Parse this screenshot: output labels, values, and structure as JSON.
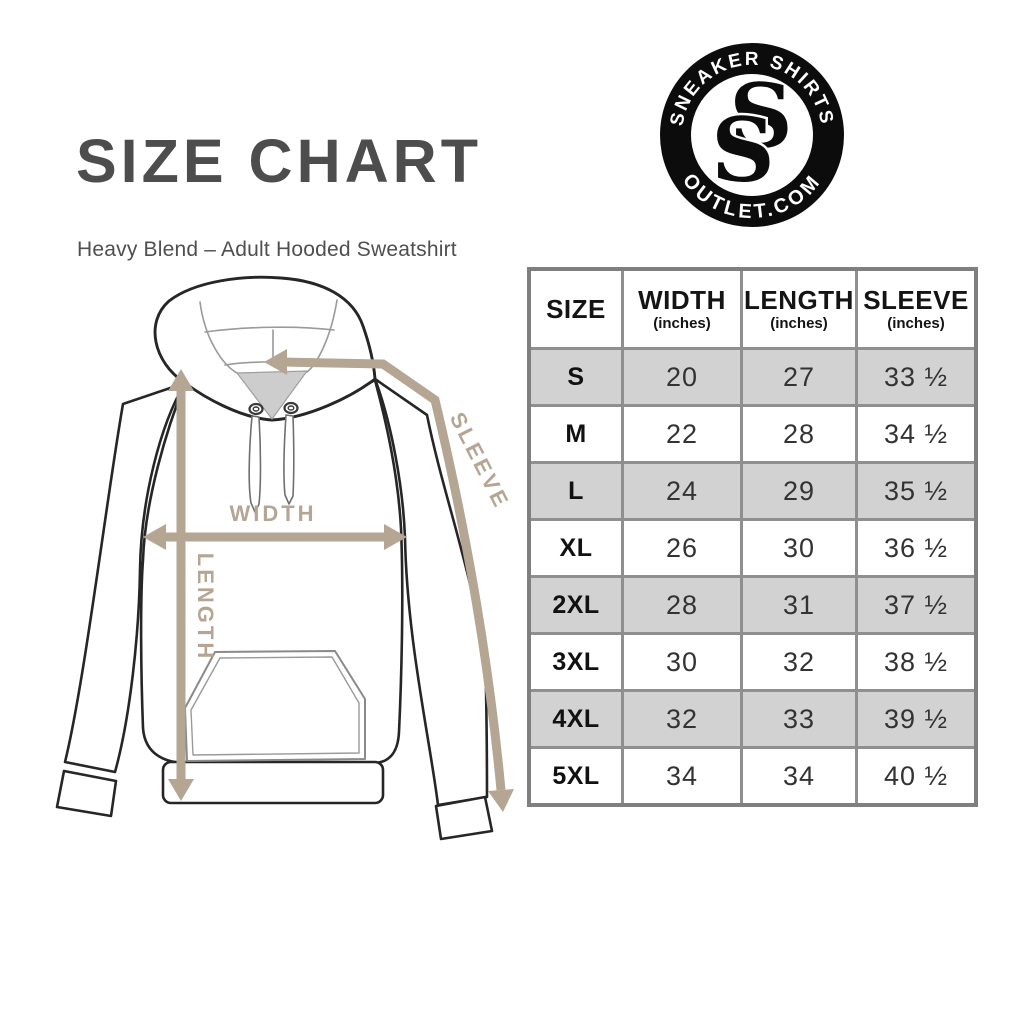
{
  "header": {
    "title": "SIZE CHART",
    "subtitle": "Heavy Blend – Adult Hooded Sweatshirt",
    "title_color": "#4d4d4d"
  },
  "logo": {
    "arc_top": "SNEAKER SHIRTS",
    "arc_bottom": "OUTLET.COM",
    "monogram_back": "S",
    "monogram_front": "S",
    "ring_color": "#0c0c0c"
  },
  "diagram": {
    "width_label": "WIDTH",
    "length_label": "LENGTH",
    "sleeve_label": "SLEEVE",
    "arrow_color": "#b5a694",
    "outline_color": "#262626"
  },
  "chart_data": {
    "type": "table",
    "title": "SIZE CHART",
    "subtitle": "Heavy Blend – Adult Hooded Sweatshirt",
    "columns": [
      {
        "label": "SIZE",
        "sub": ""
      },
      {
        "label": "WIDTH",
        "sub": "(inches)"
      },
      {
        "label": "LENGTH",
        "sub": "(inches)"
      },
      {
        "label": "SLEEVE",
        "sub": "(inches)"
      }
    ],
    "rows": [
      [
        "S",
        "20",
        "27",
        "33 ½"
      ],
      [
        "M",
        "22",
        "28",
        "34 ½"
      ],
      [
        "L",
        "24",
        "29",
        "35 ½"
      ],
      [
        "XL",
        "26",
        "30",
        "36 ½"
      ],
      [
        "2XL",
        "28",
        "31",
        "37 ½"
      ],
      [
        "3XL",
        "30",
        "32",
        "38 ½"
      ],
      [
        "4XL",
        "32",
        "33",
        "39 ½"
      ],
      [
        "5XL",
        "34",
        "34",
        "40 ½"
      ]
    ],
    "alt_row_color": "#d2d2d2",
    "border_color": "#8f8f8f"
  }
}
